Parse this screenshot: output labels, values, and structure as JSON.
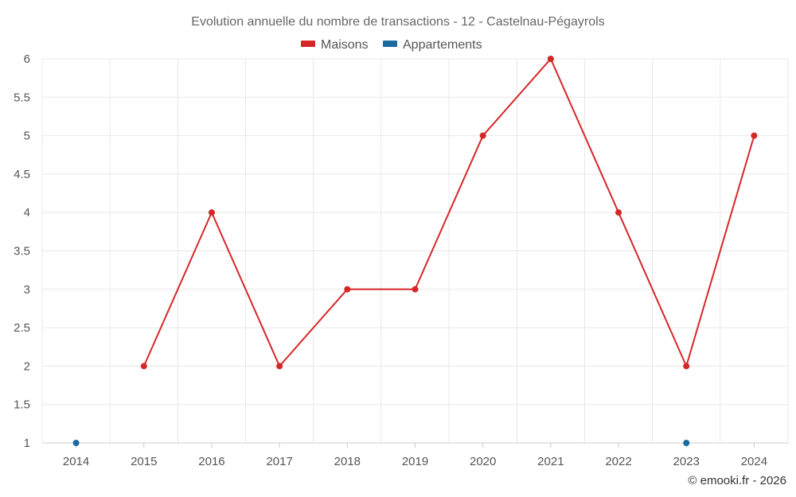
{
  "chart_data": {
    "type": "line",
    "title": "Evolution annuelle du nombre de transactions - 12 - Castelnau-Pégayrols",
    "categories": [
      "2014",
      "2015",
      "2016",
      "2017",
      "2018",
      "2019",
      "2020",
      "2021",
      "2022",
      "2023",
      "2024"
    ],
    "series": [
      {
        "name": "Maisons",
        "color": "#d62728",
        "values": [
          null,
          2,
          4,
          2,
          3,
          3,
          5,
          6,
          4,
          2,
          5
        ]
      },
      {
        "name": "Appartements",
        "color": "#1a6aa0",
        "values": [
          1,
          null,
          null,
          null,
          null,
          null,
          null,
          null,
          null,
          1,
          null
        ]
      }
    ],
    "ylim": [
      1,
      6
    ],
    "yticks": [
      "1",
      "1.5",
      "2",
      "2.5",
      "3",
      "3.5",
      "4",
      "4.5",
      "5",
      "5.5",
      "6"
    ],
    "grid": true,
    "legend_position": "top-center",
    "xlabel": "",
    "ylabel": ""
  },
  "credit": "© emooki.fr - 2026"
}
